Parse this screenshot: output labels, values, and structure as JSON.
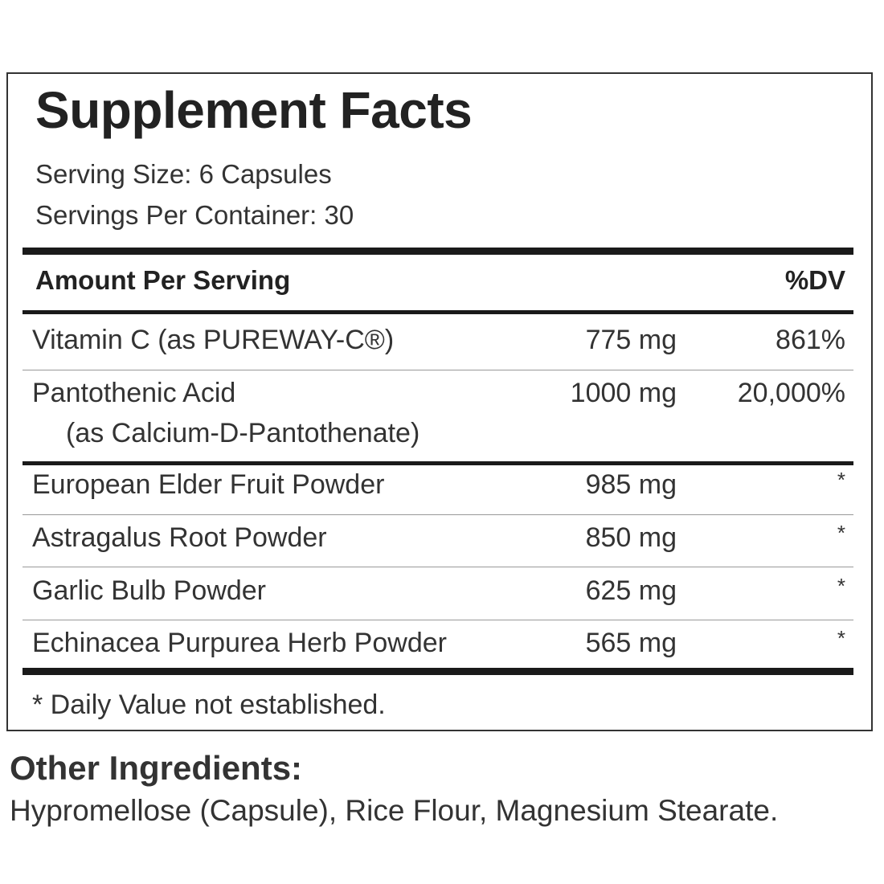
{
  "title": "Supplement Facts",
  "serving_size": "Serving Size: 6 Capsules",
  "servings_per_container": "Servings Per Container: 30",
  "header": {
    "amount_per_serving": "Amount Per Serving",
    "dv": "%DV"
  },
  "rows": [
    {
      "name": "Vitamin C (as PUREWAY-C®)",
      "amount": "775 mg",
      "dv": "861%"
    },
    {
      "name": "Pantothenic Acid",
      "subname": "(as Calcium-D-Pantothenate)",
      "amount": "1000 mg",
      "dv": "20,000%"
    },
    {
      "name": "European Elder Fruit Powder",
      "amount": "985 mg",
      "dv": "*"
    },
    {
      "name": "Astragalus Root Powder",
      "amount": "850 mg",
      "dv": "*"
    },
    {
      "name": "Garlic Bulb Powder",
      "amount": "625 mg",
      "dv": "*"
    },
    {
      "name": "Echinacea Purpurea Herb Powder",
      "amount": "565 mg",
      "dv": "*"
    }
  ],
  "footnote": "* Daily Value not established.",
  "other_ingredients": {
    "title": "Other Ingredients:",
    "text": "Hypromellose (Capsule), Rice Flour, Magnesium Stearate."
  }
}
